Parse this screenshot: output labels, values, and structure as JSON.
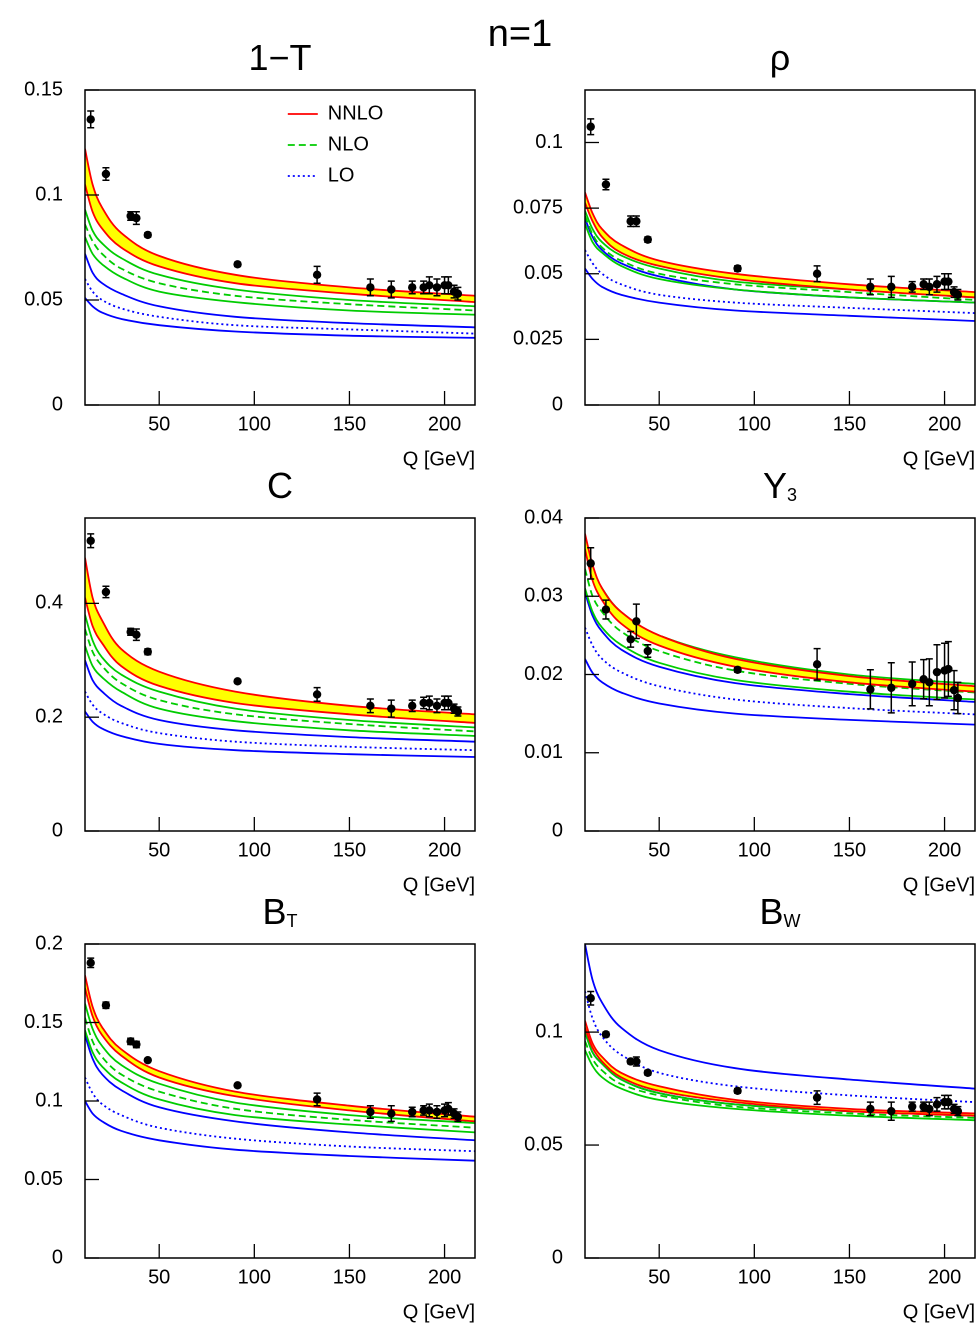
{
  "title": "n=1",
  "chart_data": [
    {
      "type": "line",
      "title": "1−T",
      "xlabel": "Q [GeV]",
      "xlim": [
        11,
        216
      ],
      "xticks": [
        50,
        100,
        150,
        200
      ],
      "ylim": [
        0,
        0.15
      ],
      "yticks": [
        0,
        0.05,
        0.1,
        0.15
      ],
      "legend": "upper center",
      "x": [
        11,
        15,
        20,
        30,
        50,
        90,
        150,
        216
      ],
      "series": [
        {
          "name": "NNLO",
          "color": "#ff0000",
          "fill": "#ffff00",
          "upper": [
            0.122,
            0.105,
            0.094,
            0.082,
            0.071,
            0.062,
            0.056,
            0.052
          ],
          "lower": [
            0.105,
            0.092,
            0.084,
            0.075,
            0.066,
            0.058,
            0.053,
            0.049
          ]
        },
        {
          "name": "NLO",
          "color": "#00cc00",
          "dash": "dashed",
          "values": [
            0.086,
            0.078,
            0.072,
            0.065,
            0.058,
            0.052,
            0.048,
            0.045
          ],
          "upper": [
            0.093,
            0.083,
            0.077,
            0.07,
            0.062,
            0.055,
            0.05,
            0.047
          ],
          "lower": [
            0.08,
            0.072,
            0.067,
            0.061,
            0.054,
            0.049,
            0.045,
            0.043
          ]
        },
        {
          "name": "LO",
          "color": "#0000ff",
          "dash": "dotted",
          "values": [
            0.06,
            0.054,
            0.05,
            0.046,
            0.042,
            0.038,
            0.036,
            0.034
          ],
          "upper": [
            0.072,
            0.063,
            0.058,
            0.053,
            0.047,
            0.042,
            0.039,
            0.037
          ],
          "lower": [
            0.051,
            0.047,
            0.044,
            0.041,
            0.038,
            0.035,
            0.033,
            0.032
          ]
        }
      ],
      "points": {
        "x": [
          14,
          22,
          35,
          38,
          44,
          91.2,
          133,
          161,
          172,
          183,
          189,
          192,
          196,
          200,
          202,
          205,
          207
        ],
        "values": [
          0.136,
          0.11,
          0.09,
          0.089,
          0.081,
          0.067,
          0.062,
          0.056,
          0.055,
          0.056,
          0.056,
          0.057,
          0.056,
          0.057,
          0.057,
          0.054,
          0.053
        ],
        "errors": [
          0.004,
          0.003,
          0.002,
          0.003,
          0.001,
          0.001,
          0.004,
          0.004,
          0.004,
          0.003,
          0.003,
          0.004,
          0.004,
          0.004,
          0.004,
          0.003,
          0.003
        ]
      }
    },
    {
      "type": "line",
      "title": "ρ",
      "xlabel": "Q [GeV]",
      "xlim": [
        11,
        216
      ],
      "xticks": [
        50,
        100,
        150,
        200
      ],
      "ylim": [
        0,
        0.12
      ],
      "yticks": [
        0,
        0.025,
        0.05,
        0.075,
        0.1
      ],
      "x": [
        11,
        15,
        20,
        30,
        50,
        90,
        150,
        216
      ],
      "series": [
        {
          "color": "#ff0000",
          "fill": "#ffff00",
          "upper": [
            0.081,
            0.073,
            0.067,
            0.061,
            0.055,
            0.05,
            0.046,
            0.043
          ],
          "lower": [
            0.077,
            0.07,
            0.064,
            0.058,
            0.053,
            0.048,
            0.044,
            0.041
          ]
        },
        {
          "color": "#00cc00",
          "dash": "dashed",
          "values": [
            0.072,
            0.065,
            0.06,
            0.055,
            0.05,
            0.046,
            0.043,
            0.04
          ],
          "upper": [
            0.074,
            0.067,
            0.062,
            0.057,
            0.052,
            0.047,
            0.044,
            0.041
          ],
          "lower": [
            0.069,
            0.062,
            0.058,
            0.053,
            0.048,
            0.044,
            0.041,
            0.039
          ]
        },
        {
          "color": "#0000ff",
          "dash": "dotted",
          "values": [
            0.059,
            0.054,
            0.05,
            0.046,
            0.042,
            0.039,
            0.037,
            0.035
          ],
          "upper": [
            0.071,
            0.064,
            0.059,
            0.054,
            0.049,
            0.044,
            0.041,
            0.039
          ],
          "lower": [
            0.052,
            0.048,
            0.045,
            0.042,
            0.039,
            0.036,
            0.034,
            0.032
          ]
        }
      ],
      "points": {
        "x": [
          14,
          22,
          35,
          38,
          44,
          91.2,
          133,
          161,
          172,
          183,
          189,
          192,
          196,
          200,
          202,
          205,
          207
        ],
        "values": [
          0.106,
          0.084,
          0.07,
          0.07,
          0.063,
          0.052,
          0.05,
          0.045,
          0.045,
          0.045,
          0.046,
          0.045,
          0.046,
          0.047,
          0.047,
          0.043,
          0.042
        ],
        "errors": [
          0.003,
          0.002,
          0.002,
          0.002,
          0.001,
          0.001,
          0.003,
          0.003,
          0.004,
          0.002,
          0.002,
          0.003,
          0.003,
          0.003,
          0.003,
          0.002,
          0.002
        ]
      }
    },
    {
      "type": "line",
      "title": "C",
      "xlabel": "Q [GeV]",
      "xlim": [
        11,
        216
      ],
      "xticks": [
        50,
        100,
        150,
        200
      ],
      "ylim": [
        0,
        0.55
      ],
      "yticks": [
        0,
        0.2,
        0.4
      ],
      "x": [
        11,
        15,
        20,
        30,
        50,
        90,
        150,
        216
      ],
      "series": [
        {
          "color": "#ff0000",
          "fill": "#ffff00",
          "upper": [
            0.48,
            0.41,
            0.37,
            0.32,
            0.28,
            0.245,
            0.22,
            0.205
          ],
          "lower": [
            0.41,
            0.36,
            0.33,
            0.29,
            0.255,
            0.225,
            0.205,
            0.19
          ]
        },
        {
          "color": "#00cc00",
          "dash": "dashed",
          "values": [
            0.355,
            0.315,
            0.29,
            0.26,
            0.23,
            0.205,
            0.188,
            0.175
          ],
          "upper": [
            0.38,
            0.335,
            0.305,
            0.275,
            0.245,
            0.215,
            0.195,
            0.182
          ],
          "lower": [
            0.325,
            0.29,
            0.27,
            0.245,
            0.215,
            0.193,
            0.177,
            0.167
          ]
        },
        {
          "color": "#0000ff",
          "dash": "dotted",
          "values": [
            0.245,
            0.222,
            0.207,
            0.19,
            0.172,
            0.157,
            0.148,
            0.142
          ],
          "upper": [
            0.3,
            0.265,
            0.245,
            0.22,
            0.195,
            0.177,
            0.165,
            0.157
          ],
          "lower": [
            0.21,
            0.192,
            0.18,
            0.167,
            0.153,
            0.142,
            0.135,
            0.13
          ]
        }
      ],
      "points": {
        "x": [
          14,
          22,
          35,
          38,
          44,
          91.2,
          133,
          161,
          172,
          183,
          189,
          192,
          196,
          200,
          202,
          205,
          207
        ],
        "values": [
          0.51,
          0.42,
          0.35,
          0.345,
          0.315,
          0.263,
          0.24,
          0.22,
          0.215,
          0.22,
          0.225,
          0.225,
          0.22,
          0.225,
          0.225,
          0.215,
          0.21
        ],
        "errors": [
          0.012,
          0.01,
          0.006,
          0.01,
          0.005,
          0.003,
          0.012,
          0.012,
          0.015,
          0.01,
          0.01,
          0.012,
          0.012,
          0.012,
          0.012,
          0.008,
          0.008
        ]
      }
    },
    {
      "type": "line",
      "title": "Y",
      "title_sub": "3",
      "xlabel": "Q [GeV]",
      "xlim": [
        11,
        216
      ],
      "xticks": [
        50,
        100,
        150,
        200
      ],
      "ylim": [
        0,
        0.04
      ],
      "yticks": [
        0,
        0.01,
        0.02,
        0.03,
        0.04
      ],
      "x": [
        11,
        15,
        20,
        30,
        50,
        90,
        150,
        216
      ],
      "series": [
        {
          "color": "#ff0000",
          "fill": "#ffff00",
          "upper": [
            0.038,
            0.034,
            0.031,
            0.028,
            0.025,
            0.022,
            0.0198,
            0.0185
          ],
          "lower": [
            0.036,
            0.032,
            0.0295,
            0.0265,
            0.0237,
            0.021,
            0.019,
            0.0178
          ]
        },
        {
          "color": "#00cc00",
          "dash": "dashed",
          "values": [
            0.0335,
            0.03,
            0.028,
            0.0255,
            0.023,
            0.0205,
            0.0188,
            0.0177
          ],
          "upper": [
            0.0375,
            0.0335,
            0.031,
            0.028,
            0.025,
            0.0222,
            0.02,
            0.0188
          ],
          "lower": [
            0.031,
            0.028,
            0.026,
            0.0238,
            0.0215,
            0.0193,
            0.0178,
            0.0168
          ]
        },
        {
          "color": "#0000ff",
          "dash": "dotted",
          "values": [
            0.026,
            0.0237,
            0.022,
            0.0203,
            0.0185,
            0.0168,
            0.0157,
            0.0149
          ],
          "upper": [
            0.0305,
            0.0275,
            0.0255,
            0.0232,
            0.021,
            0.0189,
            0.0175,
            0.0165
          ],
          "lower": [
            0.022,
            0.0202,
            0.019,
            0.0177,
            0.0163,
            0.015,
            0.0142,
            0.0136
          ]
        }
      ],
      "points": {
        "x": [
          14,
          22,
          35,
          38,
          44,
          91.2,
          133,
          161,
          172,
          183,
          189,
          192,
          196,
          200,
          202,
          205,
          207
        ],
        "values": [
          0.0342,
          0.0283,
          0.0245,
          0.0268,
          0.023,
          0.0206,
          0.0213,
          0.0181,
          0.0183,
          0.0188,
          0.0194,
          0.019,
          0.0203,
          0.0205,
          0.0207,
          0.018,
          0.017
        ],
        "errors": [
          0.002,
          0.0012,
          0.001,
          0.0022,
          0.0008,
          0.0003,
          0.002,
          0.0025,
          0.0032,
          0.0028,
          0.0025,
          0.003,
          0.0035,
          0.0035,
          0.0035,
          0.0025,
          0.002
        ]
      }
    },
    {
      "type": "line",
      "title": "B",
      "title_sub": "T",
      "xlabel": "Q [GeV]",
      "xlim": [
        11,
        216
      ],
      "xticks": [
        50,
        100,
        150,
        200
      ],
      "ylim": [
        0,
        0.2
      ],
      "yticks": [
        0,
        0.05,
        0.1,
        0.15,
        0.2
      ],
      "x": [
        11,
        15,
        20,
        30,
        50,
        90,
        150,
        216
      ],
      "series": [
        {
          "color": "#ff0000",
          "fill": "#ffff00",
          "upper": [
            0.18,
            0.16,
            0.147,
            0.133,
            0.119,
            0.106,
            0.097,
            0.09
          ],
          "lower": [
            0.172,
            0.154,
            0.142,
            0.129,
            0.115,
            0.103,
            0.094,
            0.087
          ]
        },
        {
          "color": "#00cc00",
          "dash": "dashed",
          "values": [
            0.153,
            0.138,
            0.128,
            0.117,
            0.106,
            0.095,
            0.088,
            0.083
          ],
          "upper": [
            0.162,
            0.146,
            0.135,
            0.123,
            0.111,
            0.099,
            0.091,
            0.086
          ],
          "lower": [
            0.145,
            0.131,
            0.122,
            0.112,
            0.101,
            0.091,
            0.085,
            0.08
          ]
        },
        {
          "color": "#0000ff",
          "dash": "dotted",
          "values": [
            0.115,
            0.105,
            0.098,
            0.091,
            0.083,
            0.076,
            0.071,
            0.068
          ],
          "upper": [
            0.142,
            0.127,
            0.117,
            0.107,
            0.096,
            0.087,
            0.08,
            0.075
          ],
          "lower": [
            0.1,
            0.092,
            0.087,
            0.081,
            0.075,
            0.069,
            0.065,
            0.062
          ]
        }
      ],
      "points": {
        "x": [
          14,
          22,
          35,
          38,
          44,
          91.2,
          133,
          161,
          172,
          183,
          189,
          192,
          196,
          200,
          202,
          205,
          207
        ],
        "values": [
          0.188,
          0.161,
          0.138,
          0.136,
          0.126,
          0.11,
          0.101,
          0.093,
          0.092,
          0.093,
          0.094,
          0.094,
          0.093,
          0.094,
          0.095,
          0.092,
          0.09
        ],
        "errors": [
          0.003,
          0.002,
          0.002,
          0.002,
          0.001,
          0.001,
          0.004,
          0.004,
          0.005,
          0.003,
          0.003,
          0.004,
          0.004,
          0.004,
          0.004,
          0.003,
          0.003
        ]
      }
    },
    {
      "type": "line",
      "title": "B",
      "title_sub": "W",
      "xlabel": "Q [GeV]",
      "xlim": [
        11,
        216
      ],
      "xticks": [
        50,
        100,
        150,
        200
      ],
      "ylim": [
        0,
        0.139
      ],
      "yticks": [
        0,
        0.05,
        0.1
      ],
      "x": [
        11,
        15,
        20,
        30,
        50,
        90,
        150,
        216
      ],
      "series": [
        {
          "color": "#ff0000",
          "fill": "#ffff00",
          "upper": [
            0.105,
            0.095,
            0.089,
            0.082,
            0.076,
            0.07,
            0.066,
            0.064
          ],
          "lower": [
            0.102,
            0.093,
            0.087,
            0.08,
            0.074,
            0.069,
            0.065,
            0.063
          ]
        },
        {
          "color": "#00cc00",
          "dash": "dashed",
          "values": [
            0.096,
            0.088,
            0.083,
            0.077,
            0.072,
            0.067,
            0.064,
            0.062
          ],
          "upper": [
            0.1,
            0.091,
            0.086,
            0.079,
            0.073,
            0.068,
            0.065,
            0.063
          ],
          "lower": [
            0.092,
            0.085,
            0.08,
            0.075,
            0.07,
            0.066,
            0.063,
            0.061
          ]
        },
        {
          "color": "#0000ff",
          "dash": "dotted",
          "values": [
            0.118,
            0.106,
            0.098,
            0.09,
            0.082,
            0.076,
            0.072,
            0.069
          ],
          "upper": [
            0.139,
            0.123,
            0.113,
            0.102,
            0.092,
            0.084,
            0.079,
            0.075
          ],
          "lower": [
            0.1,
            0.091,
            0.086,
            0.079,
            0.073,
            0.068,
            0.065,
            0.063
          ]
        }
      ],
      "points": {
        "x": [
          14,
          22,
          35,
          38,
          44,
          91.2,
          133,
          161,
          172,
          183,
          189,
          192,
          196,
          200,
          202,
          205,
          207
        ],
        "values": [
          0.115,
          0.099,
          0.087,
          0.087,
          0.082,
          0.074,
          0.071,
          0.066,
          0.065,
          0.067,
          0.067,
          0.066,
          0.068,
          0.069,
          0.069,
          0.066,
          0.065
        ],
        "errors": [
          0.003,
          0.001,
          0.001,
          0.002,
          0.001,
          0.001,
          0.003,
          0.003,
          0.004,
          0.002,
          0.002,
          0.003,
          0.003,
          0.003,
          0.003,
          0.002,
          0.002
        ]
      }
    }
  ]
}
